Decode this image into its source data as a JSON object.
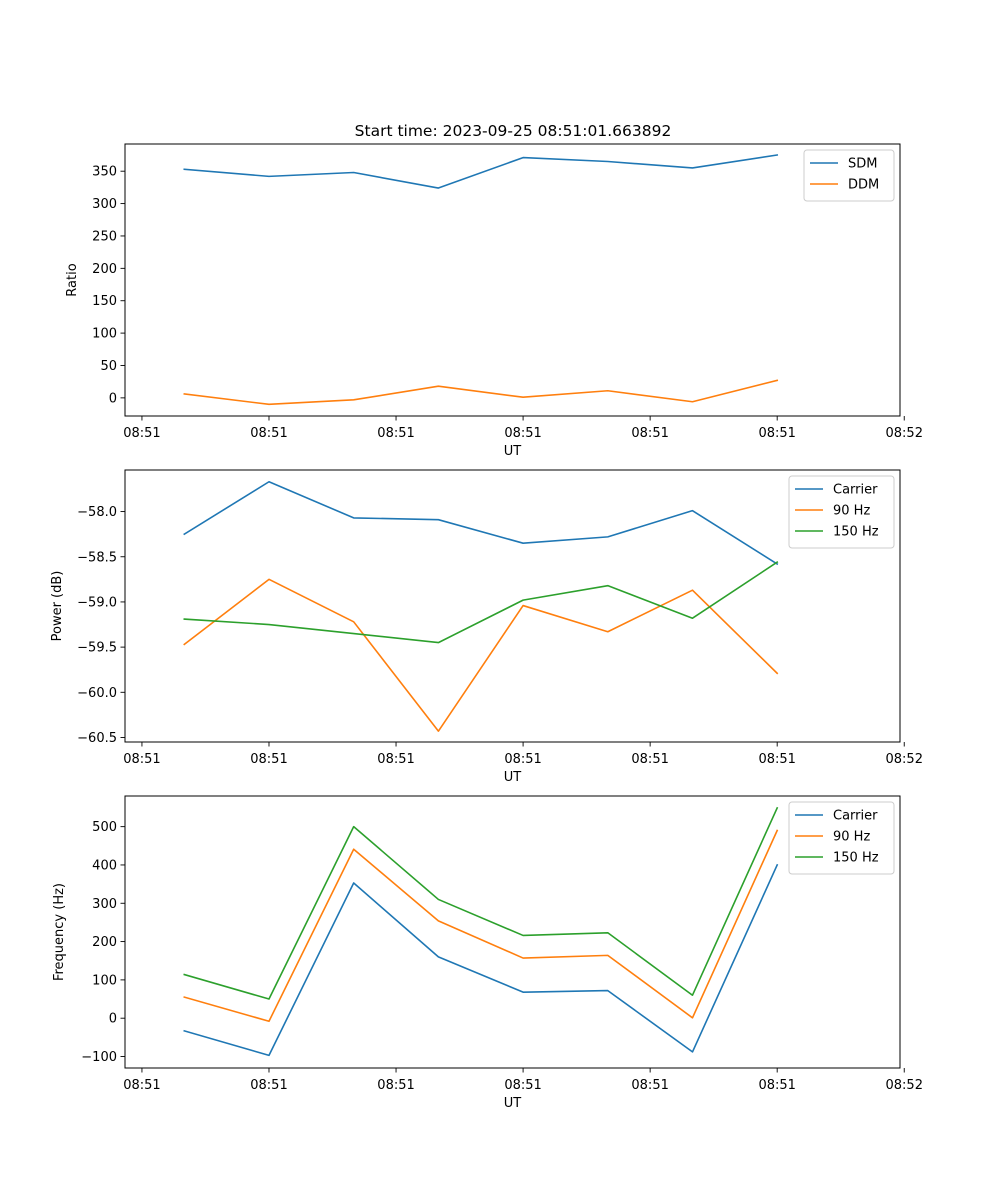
{
  "title": "Start time: 2023-09-25 08:51:01.663892",
  "colors": {
    "blue": "#1f77b4",
    "orange": "#ff7f0e",
    "green": "#2ca02c"
  },
  "chart_data": [
    {
      "type": "line",
      "title": "Start time: 2023-09-25 08:51:01.663892",
      "xlabel": "UT",
      "ylabel": "Ratio",
      "x": [
        1,
        2,
        3,
        4,
        5,
        6,
        7,
        8
      ],
      "xlim": [
        0.3,
        9.45
      ],
      "xticks": [
        0.5,
        2,
        3.5,
        5,
        6.5,
        8,
        9.5
      ],
      "xtick_labels": [
        "08:51",
        "08:51",
        "08:51",
        "08:51",
        "08:51",
        "08:51",
        "08:52"
      ],
      "ylim": [
        -28,
        392
      ],
      "yticks": [
        0,
        50,
        100,
        150,
        200,
        250,
        300,
        350
      ],
      "ytick_labels": [
        "0",
        "50",
        "100",
        "150",
        "200",
        "250",
        "300",
        "350"
      ],
      "legend_location": "top-right",
      "series": [
        {
          "name": "SDM",
          "color": "#1f77b4",
          "values": [
            353,
            342,
            348,
            324,
            371,
            365,
            355,
            375
          ]
        },
        {
          "name": "DDM",
          "color": "#ff7f0e",
          "values": [
            6,
            -10,
            -3,
            18,
            1,
            11,
            -6,
            27
          ]
        }
      ]
    },
    {
      "type": "line",
      "xlabel": "UT",
      "ylabel": "Power (dB)",
      "x": [
        1,
        2,
        3,
        4,
        5,
        6,
        7,
        8
      ],
      "xlim": [
        0.3,
        9.45
      ],
      "xticks": [
        0.5,
        2,
        3.5,
        5,
        6.5,
        8,
        9.5
      ],
      "xtick_labels": [
        "08:51",
        "08:51",
        "08:51",
        "08:51",
        "08:51",
        "08:51",
        "08:52"
      ],
      "ylim": [
        -60.55,
        -57.54
      ],
      "yticks": [
        -60.5,
        -60.0,
        -59.5,
        -59.0,
        -58.5,
        -58.0
      ],
      "ytick_labels": [
        "−60.5",
        "−60.0",
        "−59.5",
        "−59.0",
        "−58.5",
        "−58.0"
      ],
      "legend_location": "top-right",
      "series": [
        {
          "name": "Carrier",
          "color": "#1f77b4",
          "values": [
            -58.25,
            -57.67,
            -58.07,
            -58.09,
            -58.35,
            -58.28,
            -57.99,
            -58.58
          ]
        },
        {
          "name": "90 Hz",
          "color": "#ff7f0e",
          "values": [
            -59.47,
            -58.75,
            -59.22,
            -60.43,
            -59.04,
            -59.33,
            -58.87,
            -59.79
          ]
        },
        {
          "name": "150 Hz",
          "color": "#2ca02c",
          "values": [
            -59.19,
            -59.25,
            -59.35,
            -59.45,
            -58.98,
            -58.82,
            -59.18,
            -58.56
          ]
        }
      ]
    },
    {
      "type": "line",
      "xlabel": "UT",
      "ylabel": "Frequency (Hz)",
      "x": [
        1,
        2,
        3,
        4,
        5,
        6,
        7,
        8
      ],
      "xlim": [
        0.3,
        9.45
      ],
      "xticks": [
        0.5,
        2,
        3.5,
        5,
        6.5,
        8,
        9.5
      ],
      "xtick_labels": [
        "08:51",
        "08:51",
        "08:51",
        "08:51",
        "08:51",
        "08:51",
        "08:52"
      ],
      "ylim": [
        -130,
        580
      ],
      "yticks": [
        -100,
        0,
        100,
        200,
        300,
        400,
        500
      ],
      "ytick_labels": [
        "−100",
        "0",
        "100",
        "200",
        "300",
        "400",
        "500"
      ],
      "legend_location": "top-right",
      "series": [
        {
          "name": "Carrier",
          "color": "#1f77b4",
          "values": [
            -33,
            -97,
            353,
            160,
            68,
            72,
            -88,
            400
          ]
        },
        {
          "name": "90 Hz",
          "color": "#ff7f0e",
          "values": [
            55,
            -8,
            441,
            254,
            157,
            164,
            1,
            490
          ]
        },
        {
          "name": "150 Hz",
          "color": "#2ca02c",
          "values": [
            114,
            50,
            500,
            310,
            216,
            223,
            60,
            549
          ]
        }
      ]
    }
  ]
}
